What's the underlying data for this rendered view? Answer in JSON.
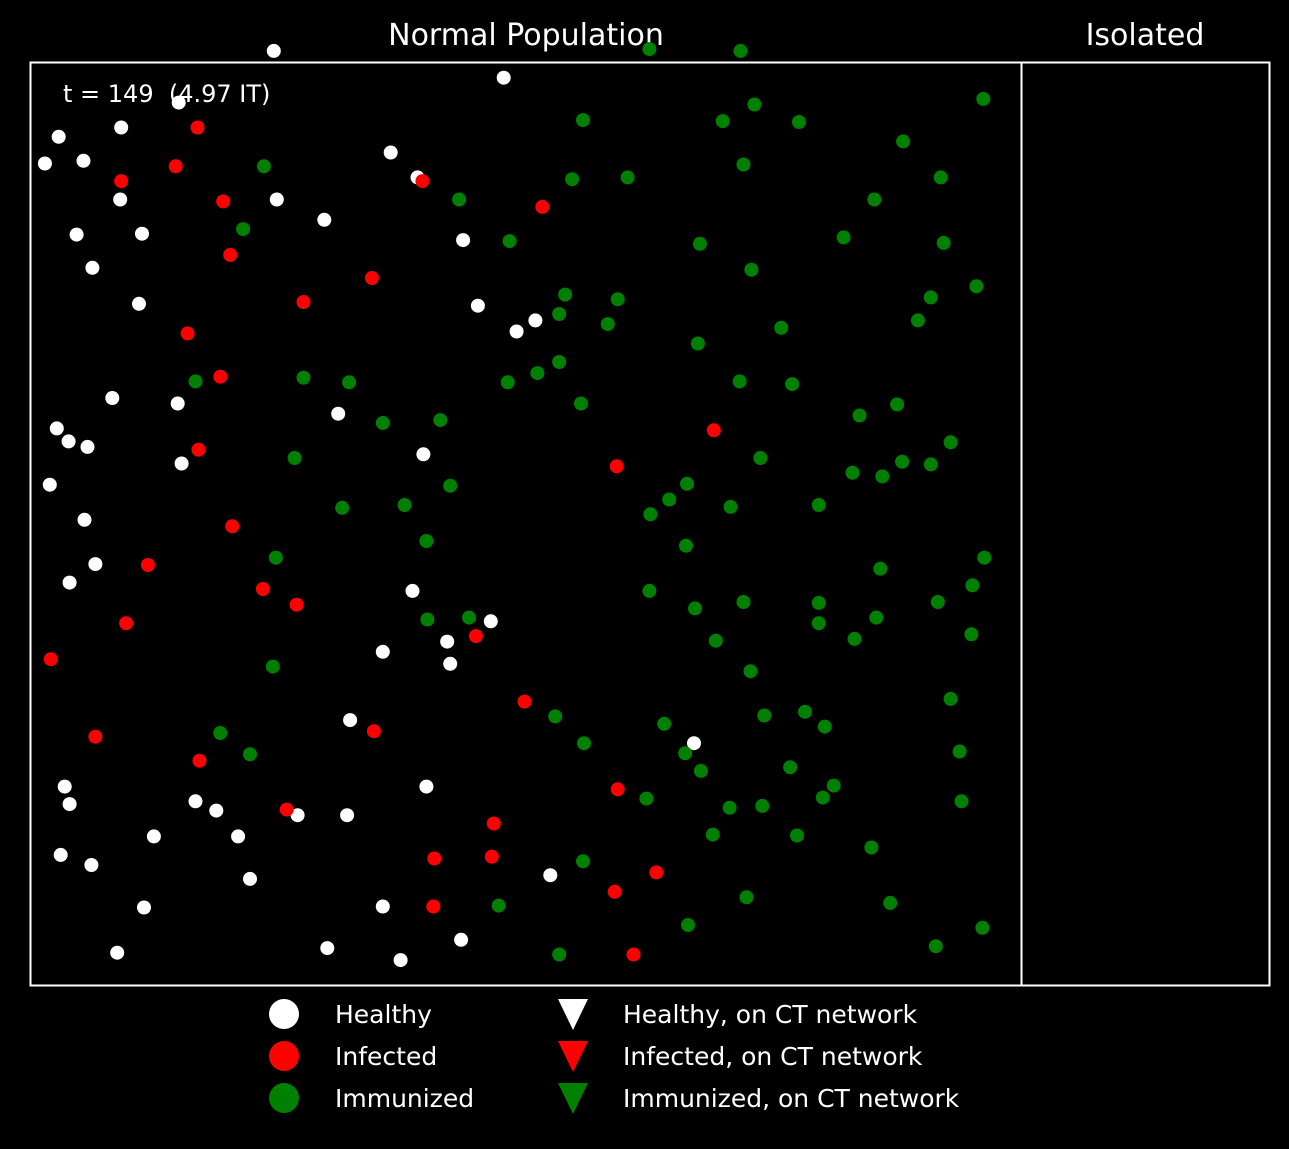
{
  "chart_data": {
    "type": "scatter",
    "axes": [
      "off",
      "off"
    ],
    "colors": {
      "background": "#000000",
      "frame": "#ffffff",
      "healthy": "#ffffff",
      "infected": "#ff0000",
      "immunized": "#008000",
      "text": "#ffffff"
    },
    "panels": [
      {
        "title": "Normal Population",
        "annotation": "t = 149  (4.97 IT)",
        "xlim": [
          0,
          1
        ],
        "ylim": [
          0,
          1
        ],
        "series": [
          {
            "name": "Healthy",
            "status": "healthy",
            "marker": "circle",
            "points": [
              [
                0.246,
                1.012
              ],
              [
                0.478,
                0.983
              ],
              [
                0.15,
                0.956
              ],
              [
                0.092,
                0.929
              ],
              [
                0.029,
                0.919
              ],
              [
                0.015,
                0.89
              ],
              [
                0.054,
                0.893
              ],
              [
                0.364,
                0.902
              ],
              [
                0.391,
                0.875
              ],
              [
                0.091,
                0.851
              ],
              [
                0.249,
                0.851
              ],
              [
                0.297,
                0.829
              ],
              [
                0.047,
                0.813
              ],
              [
                0.113,
                0.814
              ],
              [
                0.437,
                0.807
              ],
              [
                0.063,
                0.777
              ],
              [
                0.11,
                0.738
              ],
              [
                0.452,
                0.736
              ],
              [
                0.491,
                0.708
              ],
              [
                0.51,
                0.72
              ],
              [
                0.083,
                0.636
              ],
              [
                0.149,
                0.63
              ],
              [
                0.311,
                0.619
              ],
              [
                0.027,
                0.603
              ],
              [
                0.039,
                0.589
              ],
              [
                0.058,
                0.583
              ],
              [
                0.397,
                0.575
              ],
              [
                0.153,
                0.565
              ],
              [
                0.02,
                0.542
              ],
              [
                0.055,
                0.504
              ],
              [
                0.066,
                0.456
              ],
              [
                0.04,
                0.436
              ],
              [
                0.386,
                0.427
              ],
              [
                0.465,
                0.394
              ],
              [
                0.421,
                0.372
              ],
              [
                0.424,
                0.348
              ],
              [
                0.356,
                0.361
              ],
              [
                0.323,
                0.287
              ],
              [
                0.67,
                0.262
              ],
              [
                0.035,
                0.215
              ],
              [
                0.04,
                0.196
              ],
              [
                0.167,
                0.199
              ],
              [
                0.188,
                0.189
              ],
              [
                0.27,
                0.184
              ],
              [
                0.32,
                0.184
              ],
              [
                0.4,
                0.215
              ],
              [
                0.125,
                0.161
              ],
              [
                0.21,
                0.161
              ],
              [
                0.031,
                0.141
              ],
              [
                0.062,
                0.13
              ],
              [
                0.222,
                0.115
              ],
              [
                0.525,
                0.119
              ],
              [
                0.115,
                0.084
              ],
              [
                0.356,
                0.085
              ],
              [
                0.435,
                0.049
              ],
              [
                0.3,
                0.04
              ],
              [
                0.088,
                0.035
              ],
              [
                0.374,
                0.027
              ]
            ]
          },
          {
            "name": "Infected",
            "status": "infected",
            "marker": "circle",
            "points": [
              [
                0.169,
                0.929
              ],
              [
                0.147,
                0.887
              ],
              [
                0.092,
                0.871
              ],
              [
                0.195,
                0.849
              ],
              [
                0.396,
                0.871
              ],
              [
                0.517,
                0.843
              ],
              [
                0.202,
                0.791
              ],
              [
                0.345,
                0.766
              ],
              [
                0.276,
                0.74
              ],
              [
                0.159,
                0.706
              ],
              [
                0.192,
                0.659
              ],
              [
                0.69,
                0.601
              ],
              [
                0.17,
                0.58
              ],
              [
                0.592,
                0.562
              ],
              [
                0.204,
                0.497
              ],
              [
                0.119,
                0.455
              ],
              [
                0.235,
                0.429
              ],
              [
                0.269,
                0.412
              ],
              [
                0.097,
                0.392
              ],
              [
                0.021,
                0.353
              ],
              [
                0.45,
                0.378
              ],
              [
                0.499,
                0.307
              ],
              [
                0.347,
                0.275
              ],
              [
                0.066,
                0.269
              ],
              [
                0.171,
                0.243
              ],
              [
                0.259,
                0.19
              ],
              [
                0.593,
                0.212
              ],
              [
                0.468,
                0.175
              ],
              [
                0.408,
                0.137
              ],
              [
                0.466,
                0.139
              ],
              [
                0.632,
                0.122
              ],
              [
                0.59,
                0.101
              ],
              [
                0.407,
                0.085
              ],
              [
                0.609,
                0.033
              ]
            ]
          },
          {
            "name": "Immunized",
            "status": "immunized",
            "marker": "circle",
            "points": [
              [
                0.625,
                1.014
              ],
              [
                0.717,
                1.012
              ],
              [
                0.962,
                0.96
              ],
              [
                0.558,
                0.937
              ],
              [
                0.731,
                0.954
              ],
              [
                0.699,
                0.936
              ],
              [
                0.776,
                0.935
              ],
              [
                0.881,
                0.914
              ],
              [
                0.236,
                0.887
              ],
              [
                0.547,
                0.873
              ],
              [
                0.603,
                0.875
              ],
              [
                0.72,
                0.889
              ],
              [
                0.919,
                0.875
              ],
              [
                0.433,
                0.851
              ],
              [
                0.852,
                0.851
              ],
              [
                0.215,
                0.819
              ],
              [
                0.484,
                0.806
              ],
              [
                0.676,
                0.803
              ],
              [
                0.821,
                0.81
              ],
              [
                0.922,
                0.804
              ],
              [
                0.728,
                0.775
              ],
              [
                0.955,
                0.757
              ],
              [
                0.909,
                0.745
              ],
              [
                0.54,
                0.748
              ],
              [
                0.593,
                0.743
              ],
              [
                0.534,
                0.727
              ],
              [
                0.583,
                0.716
              ],
              [
                0.896,
                0.72
              ],
              [
                0.758,
                0.712
              ],
              [
                0.674,
                0.695
              ],
              [
                0.534,
                0.675
              ],
              [
                0.167,
                0.654
              ],
              [
                0.276,
                0.658
              ],
              [
                0.322,
                0.653
              ],
              [
                0.482,
                0.653
              ],
              [
                0.512,
                0.663
              ],
              [
                0.716,
                0.654
              ],
              [
                0.769,
                0.651
              ],
              [
                0.556,
                0.63
              ],
              [
                0.837,
                0.617
              ],
              [
                0.875,
                0.629
              ],
              [
                0.356,
                0.609
              ],
              [
                0.414,
                0.612
              ],
              [
                0.929,
                0.588
              ],
              [
                0.267,
                0.571
              ],
              [
                0.737,
                0.571
              ],
              [
                0.83,
                0.555
              ],
              [
                0.88,
                0.567
              ],
              [
                0.86,
                0.551
              ],
              [
                0.909,
                0.564
              ],
              [
                0.424,
                0.541
              ],
              [
                0.663,
                0.543
              ],
              [
                0.645,
                0.526
              ],
              [
                0.626,
                0.51
              ],
              [
                0.315,
                0.517
              ],
              [
                0.378,
                0.52
              ],
              [
                0.707,
                0.518
              ],
              [
                0.796,
                0.52
              ],
              [
                0.4,
                0.481
              ],
              [
                0.662,
                0.476
              ],
              [
                0.248,
                0.463
              ],
              [
                0.963,
                0.463
              ],
              [
                0.858,
                0.451
              ],
              [
                0.951,
                0.433
              ],
              [
                0.625,
                0.427
              ],
              [
                0.671,
                0.408
              ],
              [
                0.72,
                0.415
              ],
              [
                0.796,
                0.414
              ],
              [
                0.443,
                0.398
              ],
              [
                0.401,
                0.396
              ],
              [
                0.796,
                0.392
              ],
              [
                0.916,
                0.415
              ],
              [
                0.854,
                0.398
              ],
              [
                0.832,
                0.375
              ],
              [
                0.692,
                0.373
              ],
              [
                0.95,
                0.38
              ],
              [
                0.245,
                0.345
              ],
              [
                0.727,
                0.34
              ],
              [
                0.929,
                0.31
              ],
              [
                0.53,
                0.291
              ],
              [
                0.64,
                0.283
              ],
              [
                0.782,
                0.296
              ],
              [
                0.741,
                0.292
              ],
              [
                0.802,
                0.28
              ],
              [
                0.192,
                0.273
              ],
              [
                0.559,
                0.262
              ],
              [
                0.661,
                0.251
              ],
              [
                0.222,
                0.25
              ],
              [
                0.938,
                0.253
              ],
              [
                0.677,
                0.232
              ],
              [
                0.767,
                0.236
              ],
              [
                0.811,
                0.216
              ],
              [
                0.622,
                0.202
              ],
              [
                0.8,
                0.203
              ],
              [
                0.706,
                0.192
              ],
              [
                0.739,
                0.194
              ],
              [
                0.94,
                0.199
              ],
              [
                0.689,
                0.163
              ],
              [
                0.774,
                0.162
              ],
              [
                0.849,
                0.149
              ],
              [
                0.558,
                0.134
              ],
              [
                0.723,
                0.095
              ],
              [
                0.868,
                0.089
              ],
              [
                0.473,
                0.086
              ],
              [
                0.664,
                0.065
              ],
              [
                0.961,
                0.062
              ],
              [
                0.534,
                0.033
              ],
              [
                0.914,
                0.042
              ]
            ]
          }
        ]
      },
      {
        "title": "Isolated",
        "xlim": [
          0,
          1
        ],
        "ylim": [
          0,
          1
        ],
        "series": []
      }
    ],
    "legend": {
      "placement": "bottom-center",
      "ncol": 2,
      "entries": [
        {
          "label": "Healthy",
          "status": "healthy",
          "marker": "circle"
        },
        {
          "label": "Infected",
          "status": "infected",
          "marker": "circle"
        },
        {
          "label": "Immunized",
          "status": "immunized",
          "marker": "circle"
        },
        {
          "label": "Healthy, on CT network",
          "status": "healthy",
          "marker": "triangle-down"
        },
        {
          "label": "Infected, on CT network",
          "status": "infected",
          "marker": "triangle-down"
        },
        {
          "label": "Immunized, on CT network",
          "status": "immunized",
          "marker": "triangle-down"
        }
      ]
    }
  }
}
